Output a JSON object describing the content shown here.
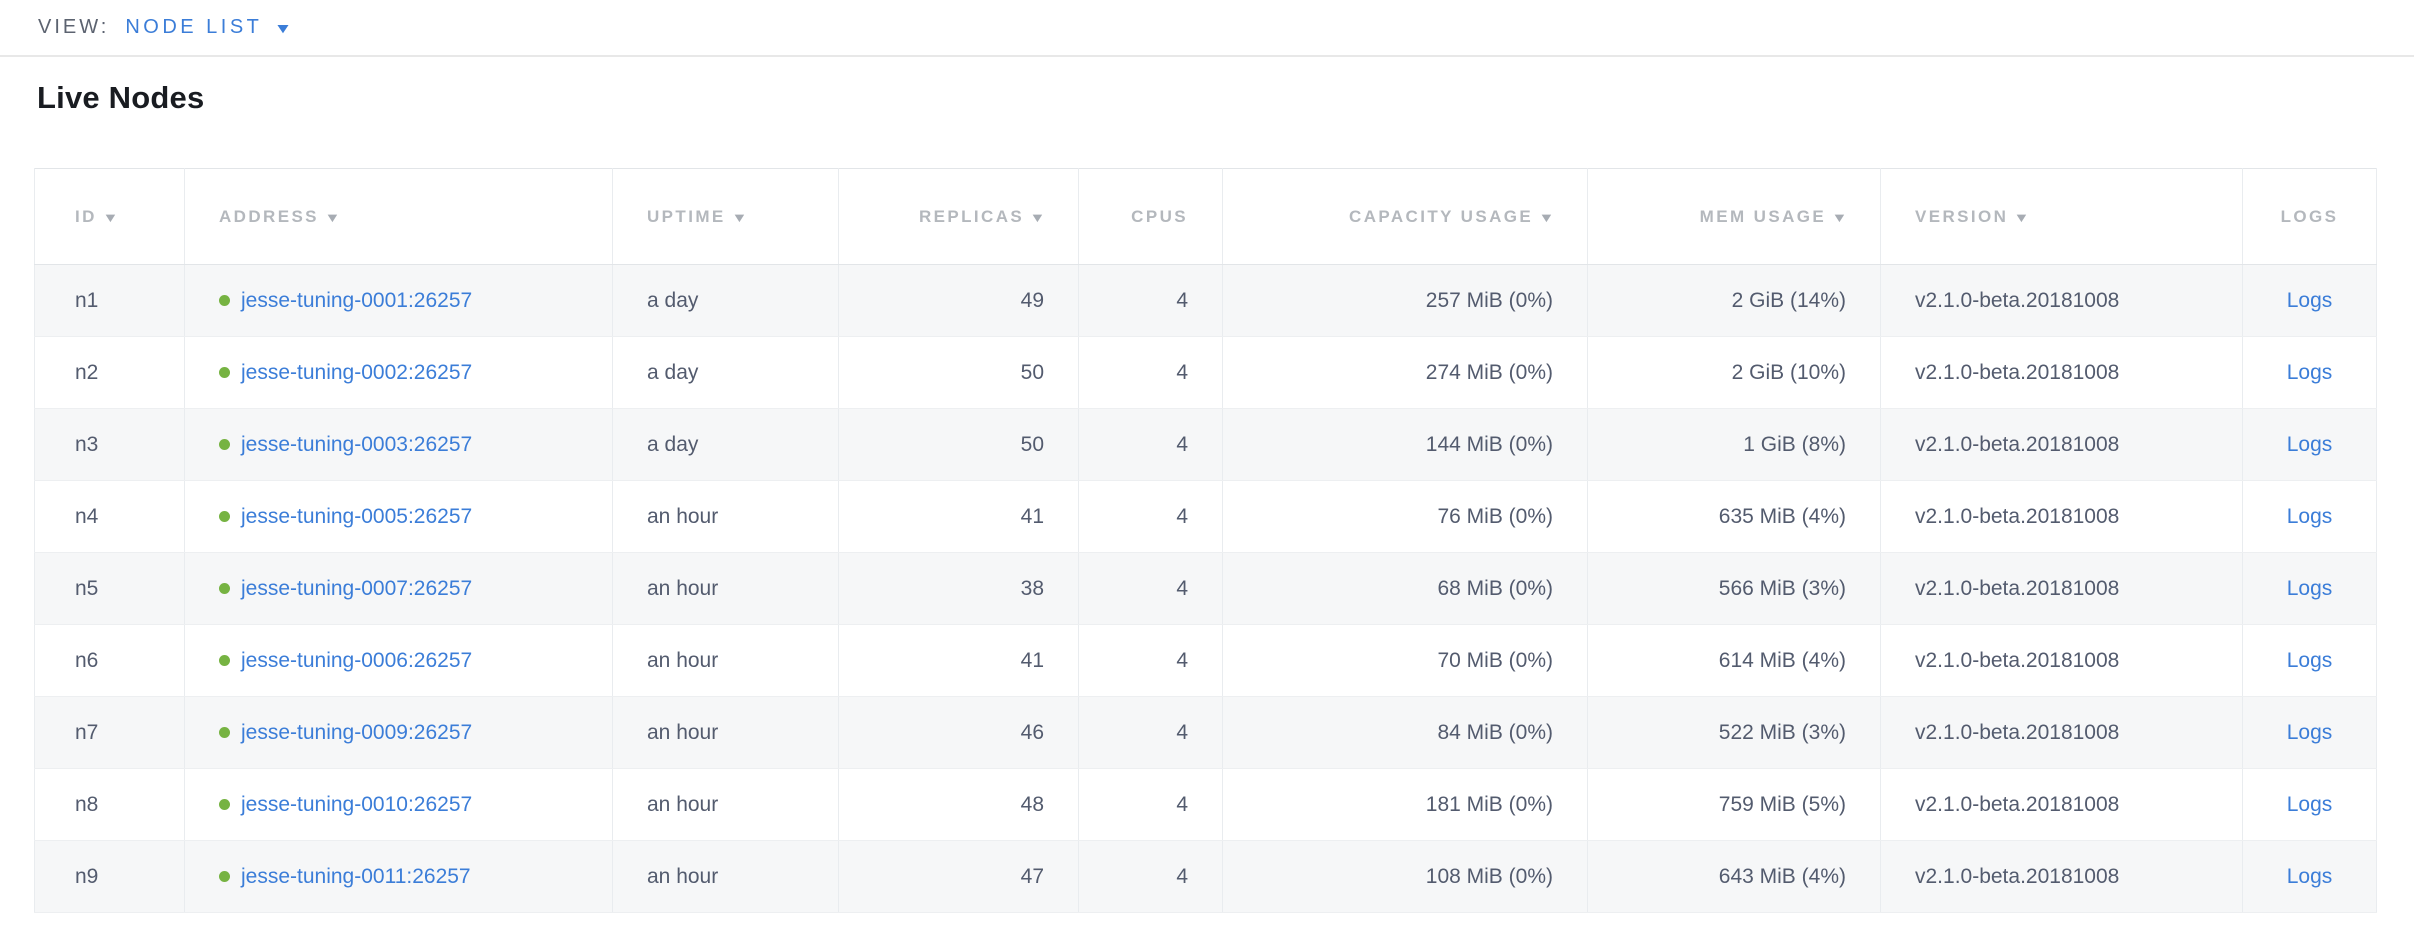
{
  "toolbar": {
    "view_label": "VIEW:",
    "view_value": "NODE LIST",
    "caret_icon": "▼"
  },
  "page": {
    "title": "Live Nodes"
  },
  "colors": {
    "link_blue": "#3b7dd8",
    "node_live_green": "#76b342",
    "header_gray": "#b4b8bd",
    "body_text": "#535b6e"
  },
  "table": {
    "sort_arrow": "▼",
    "columns": [
      {
        "key": "id",
        "label": "ID",
        "sortable": true,
        "align": "left"
      },
      {
        "key": "address",
        "label": "ADDRESS",
        "sortable": true,
        "align": "left"
      },
      {
        "key": "uptime",
        "label": "UPTIME",
        "sortable": true,
        "align": "left"
      },
      {
        "key": "replicas",
        "label": "REPLICAS",
        "sortable": true,
        "align": "right"
      },
      {
        "key": "cpus",
        "label": "CPUS",
        "sortable": false,
        "align": "right"
      },
      {
        "key": "capacity",
        "label": "CAPACITY USAGE",
        "sortable": true,
        "align": "right"
      },
      {
        "key": "mem",
        "label": "MEM USAGE",
        "sortable": true,
        "align": "right"
      },
      {
        "key": "version",
        "label": "VERSION",
        "sortable": true,
        "align": "left"
      },
      {
        "key": "logs",
        "label": "LOGS",
        "sortable": false,
        "align": "center"
      }
    ],
    "rows": [
      {
        "id": "n1",
        "address": "jesse-tuning-0001:26257",
        "uptime": "a day",
        "replicas": "49",
        "cpus": "4",
        "capacity": "257 MiB (0%)",
        "mem": "2 GiB (14%)",
        "version": "v2.1.0-beta.20181008",
        "logs": "Logs"
      },
      {
        "id": "n2",
        "address": "jesse-tuning-0002:26257",
        "uptime": "a day",
        "replicas": "50",
        "cpus": "4",
        "capacity": "274 MiB (0%)",
        "mem": "2 GiB (10%)",
        "version": "v2.1.0-beta.20181008",
        "logs": "Logs"
      },
      {
        "id": "n3",
        "address": "jesse-tuning-0003:26257",
        "uptime": "a day",
        "replicas": "50",
        "cpus": "4",
        "capacity": "144 MiB (0%)",
        "mem": "1 GiB (8%)",
        "version": "v2.1.0-beta.20181008",
        "logs": "Logs"
      },
      {
        "id": "n4",
        "address": "jesse-tuning-0005:26257",
        "uptime": "an hour",
        "replicas": "41",
        "cpus": "4",
        "capacity": "76 MiB (0%)",
        "mem": "635 MiB (4%)",
        "version": "v2.1.0-beta.20181008",
        "logs": "Logs"
      },
      {
        "id": "n5",
        "address": "jesse-tuning-0007:26257",
        "uptime": "an hour",
        "replicas": "38",
        "cpus": "4",
        "capacity": "68 MiB (0%)",
        "mem": "566 MiB (3%)",
        "version": "v2.1.0-beta.20181008",
        "logs": "Logs"
      },
      {
        "id": "n6",
        "address": "jesse-tuning-0006:26257",
        "uptime": "an hour",
        "replicas": "41",
        "cpus": "4",
        "capacity": "70 MiB (0%)",
        "mem": "614 MiB (4%)",
        "version": "v2.1.0-beta.20181008",
        "logs": "Logs"
      },
      {
        "id": "n7",
        "address": "jesse-tuning-0009:26257",
        "uptime": "an hour",
        "replicas": "46",
        "cpus": "4",
        "capacity": "84 MiB (0%)",
        "mem": "522 MiB (3%)",
        "version": "v2.1.0-beta.20181008",
        "logs": "Logs"
      },
      {
        "id": "n8",
        "address": "jesse-tuning-0010:26257",
        "uptime": "an hour",
        "replicas": "48",
        "cpus": "4",
        "capacity": "181 MiB (0%)",
        "mem": "759 MiB (5%)",
        "version": "v2.1.0-beta.20181008",
        "logs": "Logs"
      },
      {
        "id": "n9",
        "address": "jesse-tuning-0011:26257",
        "uptime": "an hour",
        "replicas": "47",
        "cpus": "4",
        "capacity": "108 MiB (0%)",
        "mem": "643 MiB (4%)",
        "version": "v2.1.0-beta.20181008",
        "logs": "Logs"
      }
    ]
  }
}
